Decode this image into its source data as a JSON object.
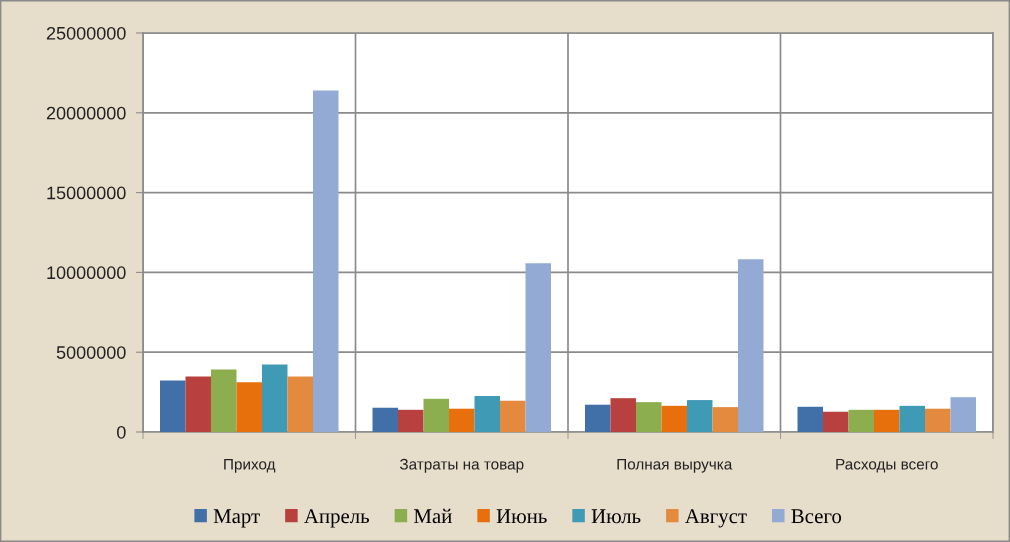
{
  "chart_data": {
    "type": "bar",
    "categories": [
      "Приход",
      "Затраты на товар",
      "Полная выручка",
      "Расходы всего"
    ],
    "series": [
      {
        "name": "Март",
        "color": "#416fa8",
        "values": [
          3230000,
          1520000,
          1710000,
          1580000
        ]
      },
      {
        "name": "Апрель",
        "color": "#b8413f",
        "values": [
          3480000,
          1390000,
          2120000,
          1270000
        ]
      },
      {
        "name": "Май",
        "color": "#8cae4f",
        "values": [
          3920000,
          2080000,
          1870000,
          1390000
        ]
      },
      {
        "name": "Июнь",
        "color": "#e8700c",
        "values": [
          3120000,
          1460000,
          1640000,
          1390000
        ]
      },
      {
        "name": "Июль",
        "color": "#3f9ab5",
        "values": [
          4230000,
          2250000,
          2000000,
          1640000
        ]
      },
      {
        "name": "Август",
        "color": "#e48a3e",
        "values": [
          3480000,
          1960000,
          1560000,
          1460000
        ]
      },
      {
        "name": "Всего",
        "color": "#92aad4",
        "values": [
          21400000,
          10570000,
          10820000,
          2180000
        ]
      }
    ],
    "ylim": [
      0,
      25000000
    ],
    "yticks": [
      0,
      5000000,
      10000000,
      15000000,
      20000000,
      25000000
    ],
    "grid": true,
    "legend": "bottom"
  }
}
